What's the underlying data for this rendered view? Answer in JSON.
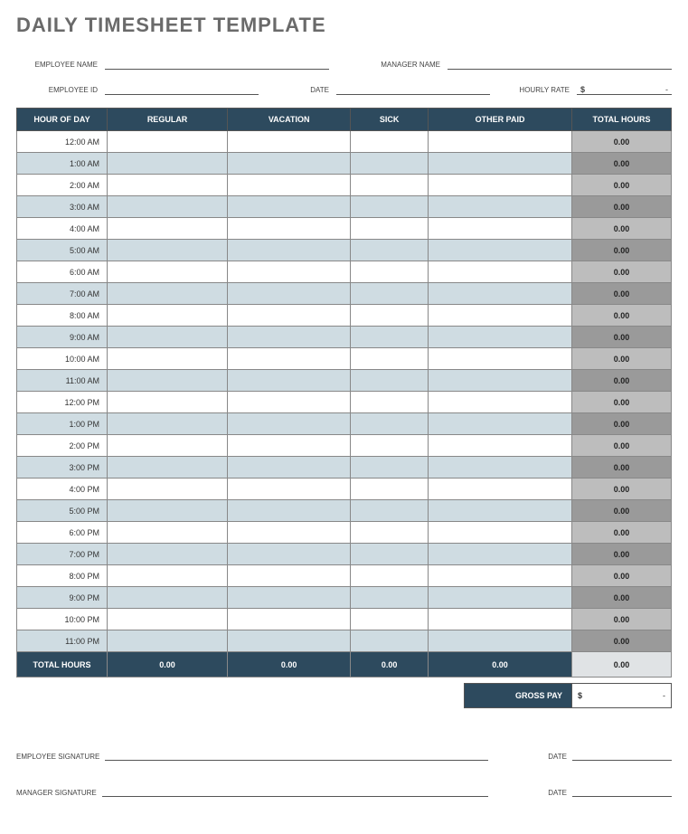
{
  "title": "DAILY TIMESHEET TEMPLATE",
  "info": {
    "employee_name_label": "EMPLOYEE NAME",
    "manager_name_label": "MANAGER NAME",
    "employee_id_label": "EMPLOYEE ID",
    "date_label": "DATE",
    "hourly_rate_label": "HOURLY RATE",
    "hourly_rate_currency": "$",
    "hourly_rate_value": "-"
  },
  "table": {
    "headers": {
      "hour": "HOUR OF DAY",
      "regular": "REGULAR",
      "vacation": "VACATION",
      "sick": "SICK",
      "other": "OTHER PAID",
      "total": "TOTAL HOURS"
    },
    "hours": [
      "12:00 AM",
      "1:00 AM",
      "2:00 AM",
      "3:00 AM",
      "4:00 AM",
      "5:00 AM",
      "6:00 AM",
      "7:00 AM",
      "8:00 AM",
      "9:00 AM",
      "10:00 AM",
      "11:00 AM",
      "12:00 PM",
      "1:00 PM",
      "2:00 PM",
      "3:00 PM",
      "4:00 PM",
      "5:00 PM",
      "6:00 PM",
      "7:00 PM",
      "8:00 PM",
      "9:00 PM",
      "10:00 PM",
      "11:00 PM"
    ],
    "row_total": "0.00",
    "totals_row": {
      "label": "TOTAL HOURS",
      "regular": "0.00",
      "vacation": "0.00",
      "sick": "0.00",
      "other": "0.00",
      "total": "0.00"
    }
  },
  "gross_pay": {
    "label": "GROSS PAY",
    "currency": "$",
    "value": "-"
  },
  "signatures": {
    "employee_label": "EMPLOYEE SIGNATURE",
    "manager_label": "MANAGER SIGNATURE",
    "date_label": "DATE"
  },
  "colors": {
    "header_bg": "#2d4a5e",
    "header_text": "#ffffff",
    "row_odd_bg": "#cfdce2",
    "row_even_bg": "#ffffff",
    "total_odd_bg": "#9a9a9a",
    "total_even_bg": "#bdbdbd",
    "final_total_bg": "#e0e3e5",
    "border": "#888888",
    "title_color": "#6a6a6a"
  }
}
